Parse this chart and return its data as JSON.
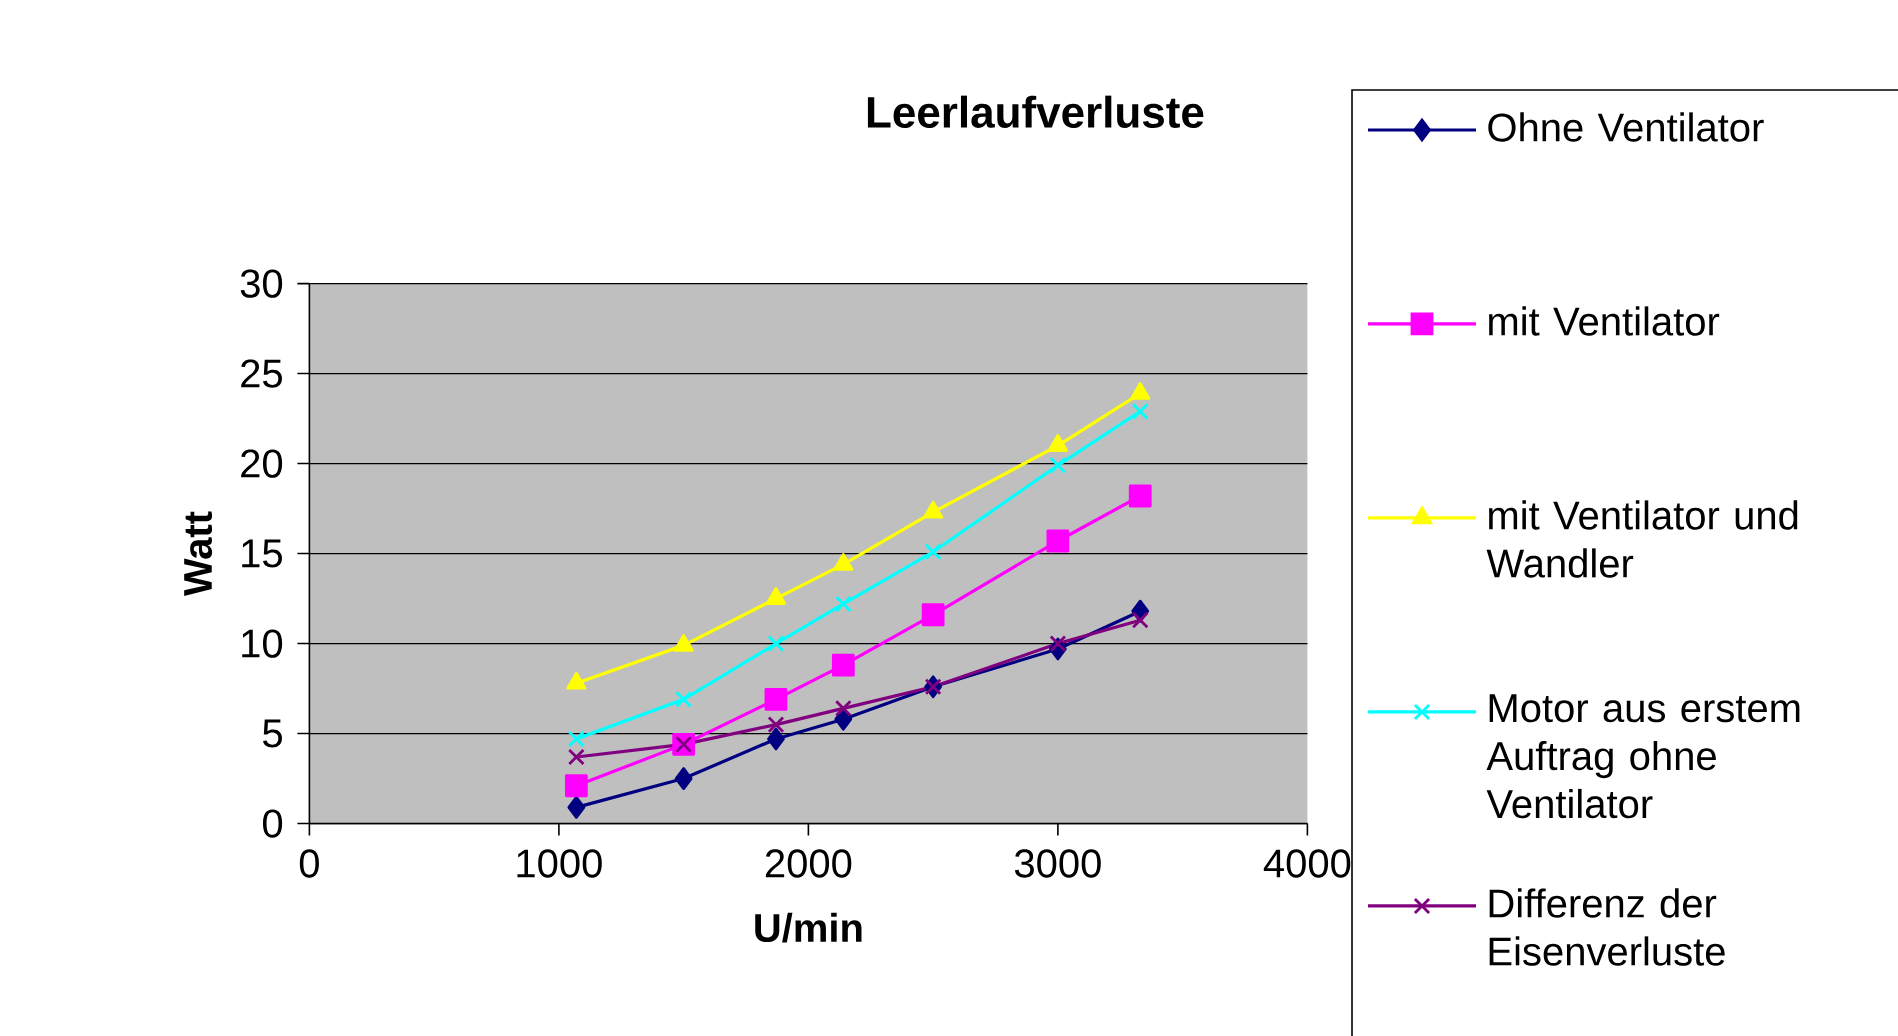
{
  "chart_data": {
    "type": "line",
    "title": "Leerlaufverluste",
    "xlabel": "U/min",
    "ylabel": "Watt",
    "x": [
      1070,
      1500,
      1870,
      2140,
      2500,
      3000,
      3330
    ],
    "series": [
      {
        "name": "Ohne Ventilator",
        "color": "#000080",
        "marker": "diamond",
        "values": [
          0.9,
          2.5,
          4.7,
          5.8,
          7.6,
          9.7,
          11.8
        ]
      },
      {
        "name": "mit Ventilator",
        "color": "#ff00ff",
        "marker": "square",
        "values": [
          2.1,
          4.4,
          6.9,
          8.8,
          11.6,
          15.7,
          18.2
        ]
      },
      {
        "name": "mit Ventilator und Wandler",
        "color": "#ffff00",
        "marker": "triangle",
        "values": [
          7.8,
          9.9,
          12.5,
          14.4,
          17.3,
          21.0,
          23.9
        ]
      },
      {
        "name": "Motor aus erstem Auftrag ohne Ventilator",
        "color": "#00ffff",
        "marker": "cross",
        "values": [
          4.7,
          6.9,
          10.0,
          12.2,
          15.1,
          19.9,
          22.9
        ]
      },
      {
        "name": "Differenz der Eisenverluste",
        "color": "#800080",
        "marker": "cross",
        "values": [
          3.7,
          4.4,
          5.5,
          6.4,
          7.6,
          10.0,
          11.3
        ]
      }
    ],
    "xlim": [
      0,
      4000
    ],
    "xticks": [
      0,
      1000,
      2000,
      3000,
      4000
    ],
    "ylim": [
      0,
      30
    ],
    "yticks": [
      0,
      5,
      10,
      15,
      20,
      25,
      30
    ],
    "grid": "y",
    "legend": "right",
    "line_style": "solid"
  }
}
